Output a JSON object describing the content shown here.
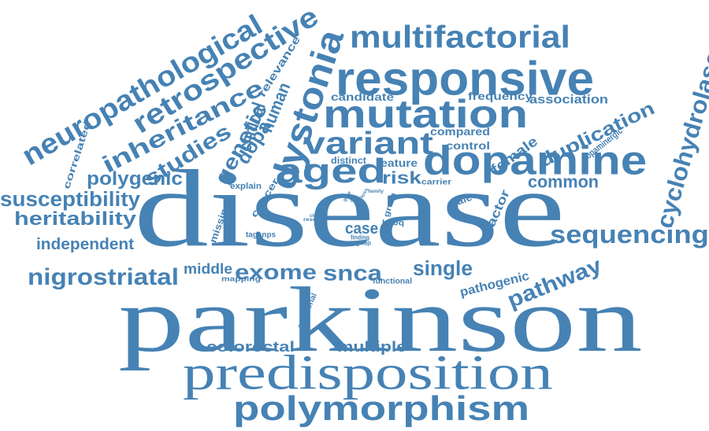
{
  "palette": {
    "word_color": "#4682b4",
    "background": "#ffffff"
  },
  "words": [
    "parkinson",
    "disease",
    "predisposition",
    "polymorphism",
    "responsive",
    "mutation",
    "dopamine",
    "multifactorial",
    "dystonia",
    "variant",
    "aged",
    "sequencing",
    "neuropathological",
    "retrospective",
    "inheritance",
    "nigrostriatal",
    "susceptibility",
    "cyclohydrolase",
    "heritability",
    "polygenic",
    "studies",
    "genetic",
    "pathway",
    "exome",
    "snca",
    "single",
    "duplication",
    "dopa",
    "human",
    "clinical",
    "risk",
    "common",
    "independent",
    "middle",
    "case",
    "colorectal",
    "multiple",
    "female",
    "factor",
    "candidate",
    "frequency",
    "association",
    "compared",
    "control",
    "feature",
    "distinct",
    "carrier",
    "male",
    "pathogenic",
    "dopaminergic",
    "correlated",
    "relevance",
    "cancer",
    "missing",
    "explain",
    "mapping",
    "functional",
    "additional",
    "tagsnps",
    "h50q",
    "grem",
    "family",
    "part",
    "close",
    "result",
    "finding",
    "tagsup",
    "rare",
    "loss",
    "gene"
  ]
}
